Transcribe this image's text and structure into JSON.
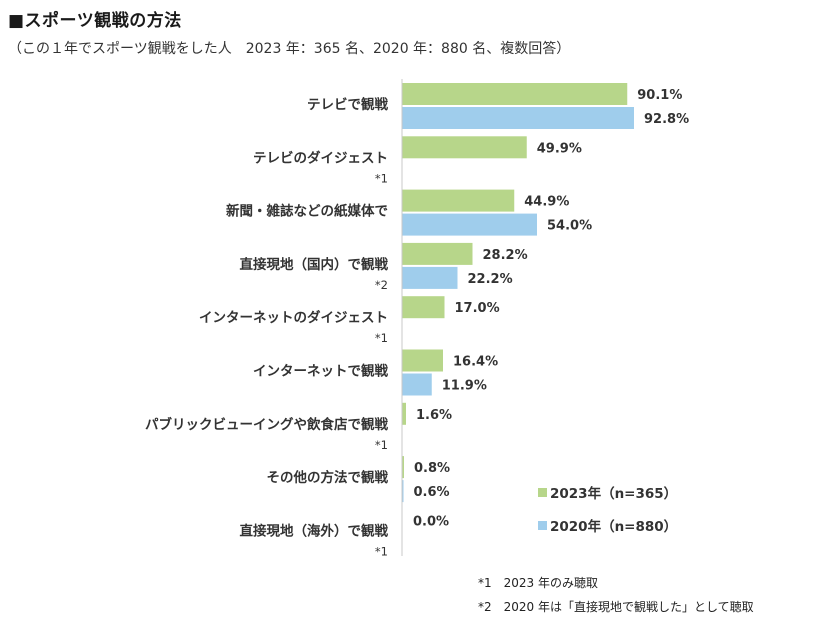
{
  "header": {
    "title": "■スポーツ観戦の方法",
    "subtitle": "（この１年でスポーツ観戦をした人　2023 年：365 名、2020 年：880 名、複数回答）"
  },
  "chart_data": {
    "type": "bar",
    "orientation": "horizontal",
    "title": "■スポーツ観戦の方法",
    "categories": [
      "テレビで観戦",
      "テレビのダイジェスト",
      "新聞・雑誌などの紙媒体で",
      "直接現地（国内）で観戦",
      "インターネットのダイジェスト",
      "インターネットで観戦",
      "パブリックビューイングや飲食店で観戦",
      "その他の方法で観戦",
      "直接現地（海外）で観戦"
    ],
    "category_notes": [
      "",
      "*1",
      "",
      "*2",
      "*1",
      "",
      "*1",
      "",
      "*1"
    ],
    "series": [
      {
        "name": "2023年（n=365）",
        "color": "#b7d68a",
        "values": [
          90.1,
          49.9,
          44.9,
          28.2,
          17.0,
          16.4,
          1.6,
          0.8,
          0.0
        ],
        "labels": [
          "90.1%",
          "49.9%",
          "44.9%",
          "28.2%",
          "17.0%",
          "16.4%",
          "1.6%",
          "0.8%",
          "0.0%"
        ]
      },
      {
        "name": "2020年（n=880）",
        "color": "#9fcdec",
        "values": [
          92.8,
          null,
          54.0,
          22.2,
          null,
          11.9,
          null,
          0.6,
          null
        ],
        "labels": [
          "92.8%",
          null,
          "54.0%",
          "22.2%",
          null,
          "11.9%",
          null,
          "0.6%",
          null
        ]
      }
    ],
    "xlim": [
      0,
      100
    ],
    "legend_position": "bottom-right"
  },
  "footnotes": [
    "*1　2023 年のみ聴取",
    "*2　2020 年は「直接現地で観戦した」として聴取"
  ]
}
